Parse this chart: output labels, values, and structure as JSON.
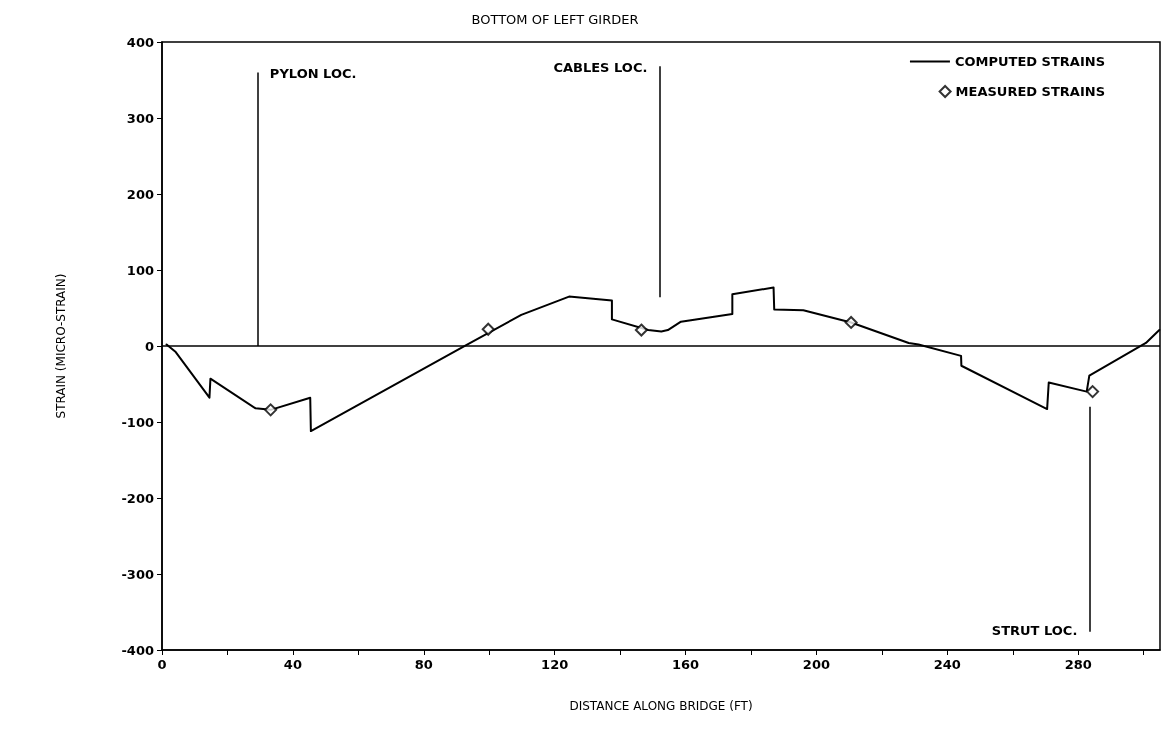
{
  "chart_data": {
    "type": "line",
    "title": "BOTTOM OF LEFT GIRDER",
    "xlabel": "DISTANCE ALONG BRIDGE (FT)",
    "ylabel": "STRAIN (MICRO-STRAIN)",
    "xlim": [
      0,
      305
    ],
    "ylim": [
      -400,
      400
    ],
    "xticks": [
      0,
      {
        "value": 20,
        "label": null
      },
      40,
      {
        "value": 60,
        "label": null
      },
      80,
      {
        "value": 100,
        "label": null
      },
      120,
      {
        "value": 140,
        "label": null
      },
      160,
      {
        "value": 180,
        "label": null
      },
      200,
      {
        "value": 220,
        "label": null
      },
      240,
      {
        "value": 260,
        "label": null
      },
      280,
      {
        "value": 300,
        "label": null
      }
    ],
    "yticks": [
      -400,
      -300,
      -200,
      -100,
      0,
      100,
      200,
      300,
      400
    ],
    "grid": false,
    "legend": "top right",
    "line_style": "solid",
    "series": [
      {
        "name": "COMPUTED STRAINS",
        "marker": "none",
        "color": "#000000",
        "x": [
          1.4,
          4.2,
          14.5,
          14.8,
          28.6,
          33.2,
          45.3,
          45.5,
          92,
          109.8,
          124.4,
          137.5,
          137.5,
          148.6,
          152.6,
          154.6,
          158.6,
          174.3,
          174.3,
          186.9,
          187.1,
          196,
          210.6,
          228.2,
          231.2,
          244.2,
          244.3,
          270.5,
          271,
          282.6,
          283.4,
          300.7,
          304.8
        ],
        "values": [
          2,
          -8,
          -68,
          -43,
          -82,
          -84,
          -68,
          -112,
          -1,
          41,
          65,
          60,
          35,
          21,
          19,
          21,
          32,
          42,
          68,
          77,
          48,
          47,
          31,
          4,
          2,
          -13,
          -26,
          -83,
          -48,
          -60,
          -39,
          4,
          21
        ]
      },
      {
        "name": "MEASURED STRAINS",
        "type": "scatter",
        "marker": "diamond",
        "color": "#000000",
        "x": [
          33.2,
          99.7,
          146.5,
          210.6,
          284.4
        ],
        "values": [
          -84,
          22,
          21,
          31,
          -60
        ]
      }
    ],
    "ref_lines": [
      {
        "axis": "x",
        "value": 29.3,
        "label": "PYLON LOC."
      },
      {
        "axis": "x",
        "value": 152,
        "label": "CABLES LOC."
      },
      {
        "axis": "x",
        "value": 283.4,
        "label": "STRUT LOC."
      },
      {
        "axis": "y",
        "value": 0
      }
    ]
  }
}
